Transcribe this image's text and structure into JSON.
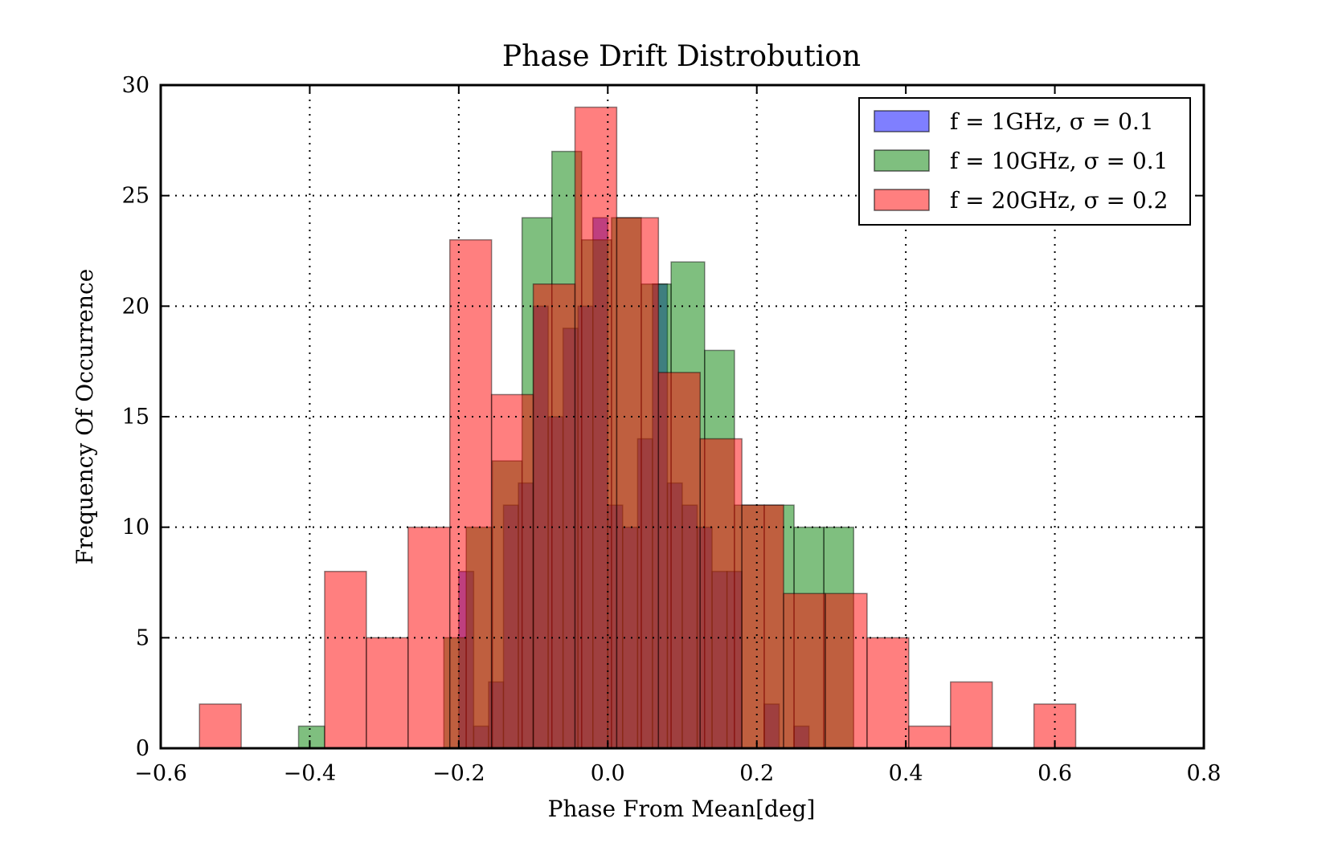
{
  "chart_data": {
    "type": "bar",
    "subtype": "histogram-overlay",
    "title": "Phase Drift Distrobution",
    "xlabel": "Phase From Mean[deg]",
    "ylabel": "Frequency Of Occurrence",
    "xlim": [
      -0.6,
      0.8
    ],
    "ylim": [
      0,
      30
    ],
    "xticks": [
      "−0.6",
      "−0.4",
      "−0.2",
      "0.0",
      "0.2",
      "0.4",
      "0.6",
      "0.8"
    ],
    "xtick_values": [
      -0.6,
      -0.4,
      -0.2,
      0.0,
      0.2,
      0.4,
      0.6,
      0.8
    ],
    "yticks": [
      "0",
      "5",
      "10",
      "15",
      "20",
      "25",
      "30"
    ],
    "ytick_values": [
      0,
      5,
      10,
      15,
      20,
      25,
      30
    ],
    "grid": true,
    "legend_position": "top-right",
    "series": [
      {
        "name": "f = 1GHz, σ = 0.1",
        "color": "#0000ff",
        "opacity": 0.5,
        "bins": [
          [
            -0.2,
            -0.18,
            8
          ],
          [
            -0.18,
            -0.16,
            1
          ],
          [
            -0.16,
            -0.14,
            3
          ],
          [
            -0.14,
            -0.12,
            11
          ],
          [
            -0.12,
            -0.1,
            12
          ],
          [
            -0.1,
            -0.08,
            20
          ],
          [
            -0.08,
            -0.06,
            15
          ],
          [
            -0.06,
            -0.04,
            19
          ],
          [
            -0.04,
            -0.02,
            20
          ],
          [
            -0.02,
            0.0,
            24
          ],
          [
            0.0,
            0.02,
            11
          ],
          [
            0.02,
            0.04,
            10
          ],
          [
            0.04,
            0.06,
            14
          ],
          [
            0.06,
            0.08,
            21
          ],
          [
            0.08,
            0.1,
            12
          ],
          [
            0.1,
            0.12,
            11
          ],
          [
            0.12,
            0.14,
            10
          ],
          [
            0.14,
            0.16,
            8
          ],
          [
            0.16,
            0.18,
            8
          ],
          [
            0.21,
            0.23,
            2
          ],
          [
            0.25,
            0.27,
            1
          ]
        ]
      },
      {
        "name": "f = 10GHz, σ = 0.1",
        "color": "#008000",
        "opacity": 0.5,
        "bins": [
          [
            -0.415,
            -0.38,
            1
          ],
          [
            -0.22,
            -0.19,
            5
          ],
          [
            -0.19,
            -0.155,
            10
          ],
          [
            -0.155,
            -0.115,
            13
          ],
          [
            -0.115,
            -0.075,
            24
          ],
          [
            -0.075,
            -0.035,
            27
          ],
          [
            -0.035,
            0.005,
            23
          ],
          [
            0.005,
            0.045,
            24
          ],
          [
            0.045,
            0.085,
            21
          ],
          [
            0.085,
            0.13,
            22
          ],
          [
            0.13,
            0.17,
            18
          ],
          [
            0.17,
            0.21,
            11
          ],
          [
            0.21,
            0.25,
            11
          ],
          [
            0.25,
            0.29,
            10
          ],
          [
            0.29,
            0.33,
            10
          ]
        ]
      },
      {
        "name": "f = 20GHz, σ = 0.2",
        "color": "#ff0000",
        "opacity": 0.5,
        "bins": [
          [
            -0.548,
            -0.492,
            2
          ],
          [
            -0.38,
            -0.324,
            8
          ],
          [
            -0.324,
            -0.268,
            5
          ],
          [
            -0.268,
            -0.212,
            10
          ],
          [
            -0.212,
            -0.156,
            23
          ],
          [
            -0.156,
            -0.1,
            16
          ],
          [
            -0.1,
            -0.044,
            21
          ],
          [
            -0.044,
            0.012,
            29
          ],
          [
            0.012,
            0.068,
            24
          ],
          [
            0.068,
            0.124,
            17
          ],
          [
            0.124,
            0.18,
            14
          ],
          [
            0.18,
            0.236,
            11
          ],
          [
            0.236,
            0.292,
            7
          ],
          [
            0.292,
            0.348,
            7
          ],
          [
            0.348,
            0.404,
            5
          ],
          [
            0.404,
            0.46,
            1
          ],
          [
            0.46,
            0.516,
            3
          ],
          [
            0.516,
            0.572,
            0
          ],
          [
            0.572,
            0.628,
            2
          ]
        ]
      }
    ]
  }
}
